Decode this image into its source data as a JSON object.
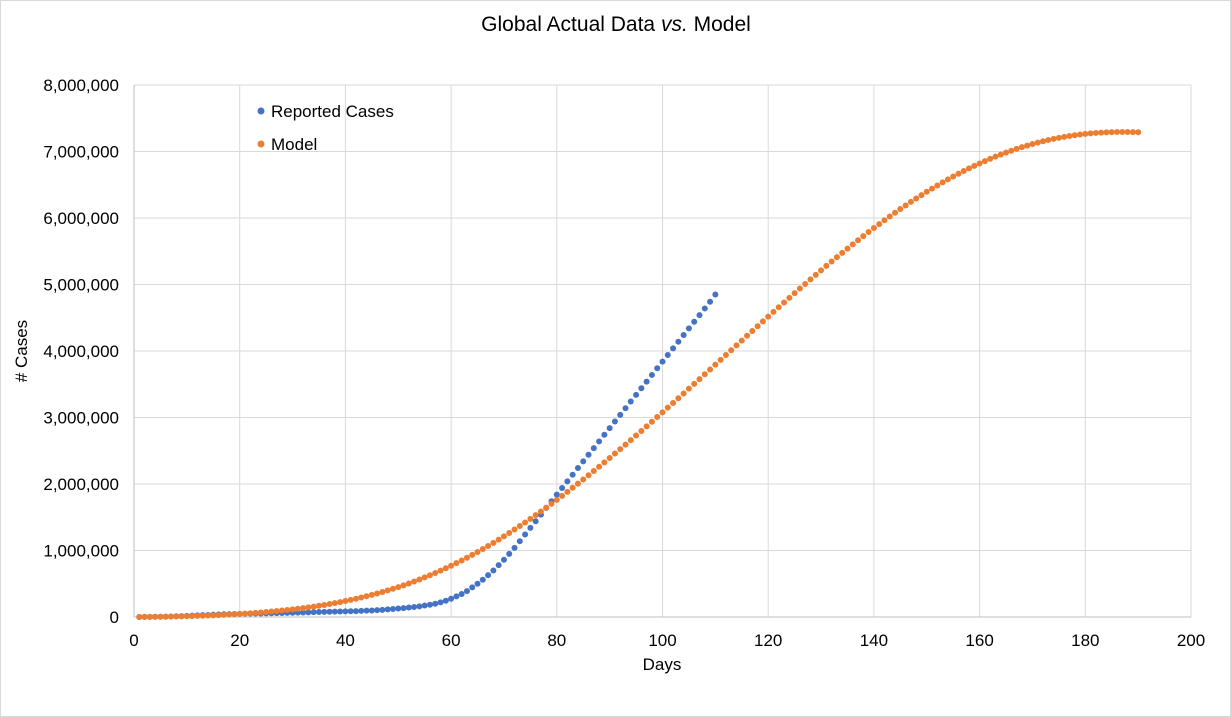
{
  "chart_data": {
    "type": "scatter",
    "title_prefix": "Global Actual Data ",
    "title_italic": "vs.",
    "title_suffix": " Model",
    "xlabel": "Days",
    "ylabel": "# Cases",
    "xlim": [
      0,
      200
    ],
    "ylim": [
      0,
      8000000
    ],
    "x_ticks": [
      0,
      20,
      40,
      60,
      80,
      100,
      120,
      140,
      160,
      180,
      200
    ],
    "x_tick_labels": [
      "0",
      "20",
      "40",
      "60",
      "80",
      "100",
      "120",
      "140",
      "160",
      "180",
      "200"
    ],
    "y_ticks": [
      0,
      1000000,
      2000000,
      3000000,
      4000000,
      5000000,
      6000000,
      7000000,
      8000000
    ],
    "y_tick_labels": [
      "0",
      "1,000,000",
      "2,000,000",
      "3,000,000",
      "4,000,000",
      "5,000,000",
      "6,000,000",
      "7,000,000",
      "8,000,000"
    ],
    "grid": true,
    "legend_position": "top-left",
    "series": [
      {
        "name": "Reported Cases",
        "color": "#4472c4",
        "x_start": 1,
        "x_step": 1,
        "values": [
          600,
          1300,
          2100,
          2900,
          4600,
          6100,
          8200,
          10400,
          13600,
          17500,
          20700,
          23800,
          27400,
          30800,
          34800,
          37600,
          40500,
          43100,
          45200,
          47000,
          48700,
          50400,
          51800,
          53000,
          55000,
          56600,
          58300,
          60000,
          61600,
          63500,
          65600,
          67500,
          69900,
          72400,
          75000,
          77000,
          79000,
          81000,
          83000,
          85000,
          87000,
          89000,
          92000,
          95000,
          98000,
          103000,
          108000,
          114000,
          120000,
          127000,
          134000,
          142000,
          150000,
          160000,
          172000,
          185000,
          200000,
          220000,
          245000,
          275000,
          310000,
          345000,
          390000,
          445000,
          500000,
          560000,
          630000,
          700000,
          780000,
          860000,
          950000,
          1040000,
          1140000,
          1240000,
          1340000,
          1440000,
          1540000,
          1640000,
          1740000,
          1840000,
          1940000,
          2040000,
          2140000,
          2240000,
          2340000,
          2440000,
          2540000,
          2640000,
          2740000,
          2840000,
          2940000,
          3040000,
          3140000,
          3240000,
          3340000,
          3440000,
          3540000,
          3640000,
          3740000,
          3840000,
          3940000,
          4040000,
          4140000,
          4240000,
          4340000,
          4440000,
          4540000,
          4640000,
          4740000,
          4850000
        ]
      },
      {
        "name": "Model",
        "color": "#ed7d31",
        "x_start": 1,
        "x_step": 1,
        "values": [
          1520,
          1800,
          2210,
          2800,
          3600,
          4600,
          5900,
          7400,
          9200,
          11200,
          13500,
          16000,
          18800,
          21900,
          25200,
          28800,
          32700,
          36800,
          41300,
          46000,
          51000,
          56500,
          62200,
          68400,
          74900,
          81900,
          89300,
          97200,
          105600,
          114600,
          124100,
          134200,
          144900,
          156300,
          168400,
          181100,
          194600,
          208900,
          224000,
          239900,
          256600,
          274200,
          292700,
          312100,
          332500,
          353800,
          376100,
          399500,
          424000,
          449600,
          476300,
          504200,
          533200,
          563500,
          595000,
          627700,
          661600,
          696800,
          733200,
          770800,
          809700,
          849800,
          891100,
          933700,
          977400,
          1022300,
          1068300,
          1115500,
          1163800,
          1213200,
          1263700,
          1315200,
          1367700,
          1421200,
          1475700,
          1531100,
          1587400,
          1644600,
          1702700,
          1761600,
          1821300,
          1881800,
          1943100,
          2005100,
          2067800,
          2131200,
          2195300,
          2260000,
          2325400,
          2391300,
          2457800,
          2524800,
          2592400,
          2660400,
          2728900,
          2797800,
          2867100,
          2936800,
          3006800,
          3077200,
          3147900,
          3218900,
          3290100,
          3361600,
          3433300,
          3505200,
          3577300,
          3649500,
          3721900,
          3794300,
          3866800,
          3939300,
          4011800,
          4084200,
          4156600,
          4228900,
          4301100,
          4373100,
          4444900,
          4516500,
          4587800,
          4658800,
          4729500,
          4799800,
          4869800,
          4939300,
          5008400,
          5077000,
          5145000,
          5212500,
          5279400,
          5345600,
          5411200,
          5476100,
          5540200,
          5603600,
          5666200,
          5727900,
          5788800,
          5848800,
          5907900,
          5966100,
          6023300,
          6079500,
          6134600,
          6188700,
          6241700,
          6293600,
          6344300,
          6393900,
          6442300,
          6489400,
          6535300,
          6579900,
          6623200,
          6665200,
          6706000,
          6745400,
          6783500,
          6820200,
          6855600,
          6889600,
          6922300,
          6953600,
          6983500,
          7012000,
          7039100,
          7064900,
          7089200,
          7112100,
          7133600,
          7153700,
          7172400,
          7189700,
          7205600,
          7220100,
          7233300,
          7245100,
          7255600,
          7264800,
          7272600,
          7279100,
          7284300,
          7288300,
          7291100,
          7292700,
          7293200,
          7292800,
          7291500,
          7289500
        ]
      }
    ]
  }
}
